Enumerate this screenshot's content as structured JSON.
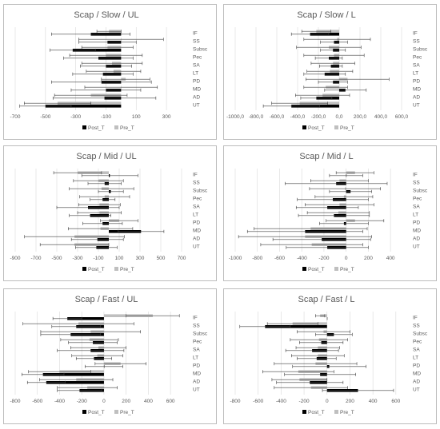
{
  "chart_data": [
    {
      "type": "bar",
      "title": "Scap / Slow / UL",
      "categories": [
        "IF",
        "SS",
        "Subsc",
        "Pec",
        "SA",
        "LT",
        "PD",
        "MD",
        "AD",
        "UT"
      ],
      "xticks": [
        -700,
        -500,
        -300,
        -100,
        100,
        300
      ],
      "xlim": [
        -700,
        400
      ],
      "series": [
        {
          "name": "Post_T",
          "color": "#000000",
          "values": [
            -200,
            -90,
            -320,
            -150,
            -100,
            -120,
            -130,
            -100,
            -110,
            -500
          ],
          "errors": [
            260,
            190,
            150,
            230,
            170,
            200,
            330,
            230,
            340,
            170
          ]
        },
        {
          "name": "Pre_T",
          "color": "#bfbfbf",
          "values": [
            -80,
            0,
            -90,
            -100,
            -60,
            -50,
            30,
            0,
            -200,
            -420
          ],
          "errors": [
            80,
            280,
            170,
            240,
            200,
            180,
            160,
            240,
            240,
            220
          ]
        }
      ]
    },
    {
      "type": "bar",
      "title": "Scap / Slow / L",
      "categories": [
        "IF",
        "SS",
        "Subsc",
        "Pec",
        "SA",
        "LT",
        "PD",
        "MD",
        "AD",
        "UT"
      ],
      "xticks": [
        "-1000,0",
        "-800,0",
        "-600,0",
        "-400,0",
        "-200,0",
        "0,0",
        "200,0",
        "400,0",
        "600,0"
      ],
      "xtick_values": [
        -1000,
        -800,
        -600,
        -400,
        -200,
        0,
        200,
        400,
        600
      ],
      "xlim": [
        -1000,
        600
      ],
      "series": [
        {
          "name": "Post_T",
          "color": "#000000",
          "values": [
            -280,
            -50,
            -60,
            -100,
            -80,
            -140,
            -60,
            60,
            -220,
            -460
          ],
          "errors": [
            180,
            130,
            120,
            130,
            110,
            200,
            140,
            200,
            150,
            270
          ]
        },
        {
          "name": "Pre_T",
          "color": "#bfbfbf",
          "values": [
            -220,
            -20,
            -100,
            -50,
            -60,
            -90,
            80,
            -130,
            -160,
            -380
          ],
          "errors": [
            140,
            320,
            310,
            290,
            210,
            220,
            400,
            210,
            260,
            270
          ]
        }
      ]
    },
    {
      "type": "bar",
      "title": "Scap / Mid / UL",
      "categories": [
        "IF",
        "SS",
        "Subsc",
        "Pec",
        "SA",
        "LT",
        "PD",
        "MD",
        "AD",
        "UT"
      ],
      "xticks": [
        -900,
        -700,
        -500,
        -300,
        -100,
        100,
        300,
        500,
        700
      ],
      "xlim": [
        -900,
        700
      ],
      "series": [
        {
          "name": "Post_T",
          "color": "#000000",
          "values": [
            10,
            -40,
            20,
            -60,
            -200,
            -180,
            -60,
            310,
            -110,
            -120
          ],
          "errors": [
            270,
            160,
            120,
            120,
            300,
            200,
            190,
            220,
            250,
            200
          ]
        },
        {
          "name": "Pre_T",
          "color": "#bfbfbf",
          "values": [
            -300,
            -100,
            -70,
            -40,
            -90,
            -90,
            100,
            -80,
            -330,
            -330
          ],
          "errors": [
            230,
            240,
            310,
            240,
            200,
            210,
            180,
            310,
            480,
            330
          ]
        }
      ]
    },
    {
      "type": "bar",
      "title": "Scap / Mid / L",
      "categories": [
        "IF",
        "SS",
        "Subsc",
        "Pec",
        "SA",
        "LT",
        "PD",
        "MD",
        "AD",
        "UT"
      ],
      "xticks": [
        -1000,
        -800,
        -600,
        -400,
        -200,
        0,
        200,
        400
      ],
      "xlim": [
        -1000,
        500
      ],
      "series": [
        {
          "name": "Post_T",
          "color": "#000000",
          "values": [
            0,
            -90,
            40,
            -120,
            -170,
            -110,
            -20,
            -370,
            -220,
            -170
          ],
          "errors": [
            150,
            460,
            190,
            320,
            280,
            320,
            220,
            520,
            440,
            370
          ]
        },
        {
          "name": "Pre_T",
          "color": "#bfbfbf",
          "values": [
            80,
            -60,
            -10,
            -20,
            -60,
            -70,
            80,
            -320,
            -370,
            -310
          ],
          "errors": [
            170,
            260,
            320,
            260,
            310,
            280,
            260,
            510,
            600,
            460
          ]
        }
      ]
    },
    {
      "type": "bar",
      "title": "Scap / Fast / UL",
      "categories": [
        "IF",
        "SS",
        "Subsc",
        "Pec",
        "SA",
        "LT",
        "PD",
        "MD",
        "AD",
        "UT"
      ],
      "xticks": [
        -800,
        -600,
        -400,
        -200,
        0,
        200,
        400,
        600
      ],
      "xlim": [
        -800,
        700
      ],
      "series": [
        {
          "name": "Post_T",
          "color": "#000000",
          "values": [
            -330,
            -250,
            -300,
            -100,
            -120,
            -90,
            0,
            -550,
            -520,
            -220
          ],
          "errors": [
            130,
            220,
            270,
            220,
            300,
            160,
            170,
            190,
            170,
            200
          ]
        },
        {
          "name": "Pre_T",
          "color": "#bfbfbf",
          "values": [
            440,
            -230,
            -120,
            -130,
            -50,
            -60,
            150,
            -400,
            -250,
            -150
          ],
          "errors": [
            240,
            500,
            450,
            260,
            250,
            230,
            230,
            280,
            330,
            270
          ]
        }
      ]
    },
    {
      "type": "bar",
      "title": "Scap / Fast / L",
      "categories": [
        "IF",
        "SS",
        "Subsc",
        "Pec",
        "SA",
        "LT",
        "PD",
        "MD",
        "AD",
        "UT"
      ],
      "xticks": [
        -800,
        -600,
        -400,
        -200,
        0,
        200,
        400,
        600
      ],
      "xlim": [
        -800,
        650
      ],
      "series": [
        {
          "name": "Post_T",
          "color": "#000000",
          "values": [
            0,
            -540,
            60,
            -50,
            -130,
            -90,
            20,
            -60,
            -150,
            270
          ],
          "errors": [
            0,
            220,
            160,
            190,
            230,
            170,
            320,
            310,
            290,
            310
          ]
        },
        {
          "name": "Pre_T",
          "color": "#bfbfbf",
          "values": [
            -60,
            -300,
            -30,
            -70,
            -80,
            -80,
            -100,
            -250,
            -240,
            -140
          ],
          "errors": [
            40,
            220,
            230,
            250,
            190,
            230,
            360,
            310,
            240,
            320
          ]
        }
      ]
    }
  ]
}
